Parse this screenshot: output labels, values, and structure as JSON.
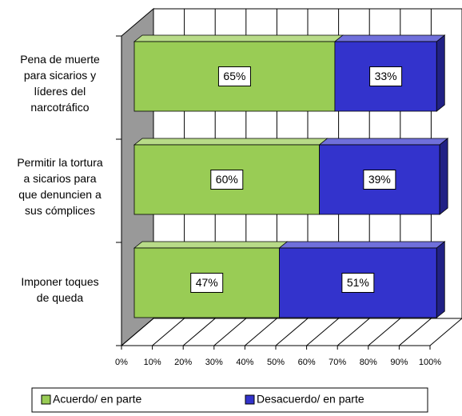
{
  "chart_data": {
    "type": "bar3d_stacked_horizontal",
    "categories": [
      "Pena de muerte\npara sicarios y\nlíderes del\nnarcotráfico",
      "Permitir la tortura\na sicarios para\nque denuncien a\nsus cómplices",
      "Imponer toques\nde queda"
    ],
    "series": [
      {
        "name": "Acuerdo/ en parte",
        "color": "#99cc55",
        "values": [
          65,
          60,
          47
        ],
        "value_labels": [
          "65%",
          "60%",
          "47%"
        ]
      },
      {
        "name": "Desacuerdo/ en parte",
        "color": "#3333cc",
        "values": [
          33,
          39,
          51
        ],
        "value_labels": [
          "33%",
          "39%",
          "51%"
        ]
      }
    ],
    "xlim": [
      0,
      100
    ],
    "xticks": [
      {
        "value": 0,
        "label": "0%"
      },
      {
        "value": 10,
        "label": "10%"
      },
      {
        "value": 20,
        "label": "20%"
      },
      {
        "value": 30,
        "label": "30%"
      },
      {
        "value": 40,
        "label": "40%"
      },
      {
        "value": 50,
        "label": "50%"
      },
      {
        "value": 60,
        "label": "60%"
      },
      {
        "value": 70,
        "label": "70%"
      },
      {
        "value": 80,
        "label": "80%"
      },
      {
        "value": 90,
        "label": "90%"
      },
      {
        "value": 100,
        "label": "100%"
      }
    ],
    "grid": true,
    "legend": "bottom"
  }
}
